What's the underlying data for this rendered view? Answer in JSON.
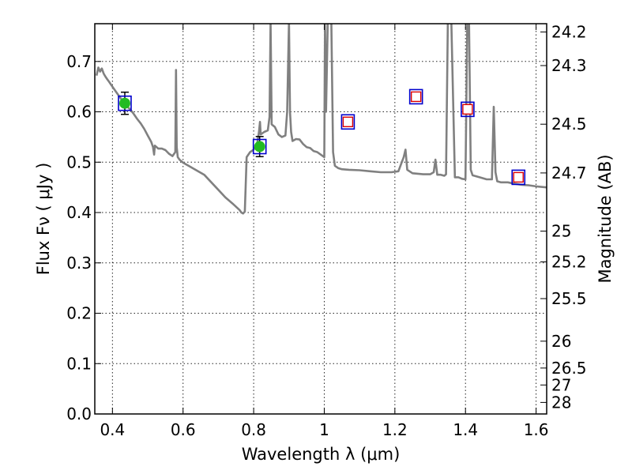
{
  "chart_data": {
    "type": "scatter",
    "xlabel": "Wavelength  λ (μm)",
    "ylabel": "Flux  Fν  ( μJy )",
    "y2label": "Magnitude (AB)",
    "xlim": [
      0.35,
      1.63
    ],
    "ylim": [
      0.0,
      0.775
    ],
    "x_ticks": [
      0.4,
      0.6,
      0.8,
      1.0,
      1.2,
      1.4,
      1.6
    ],
    "x_tick_labels": [
      "0.4",
      "0.6",
      "0.8",
      "1",
      "1.2",
      "1.4",
      "1.6"
    ],
    "y_ticks": [
      0.0,
      0.1,
      0.2,
      0.3,
      0.4,
      0.5,
      0.6,
      0.7
    ],
    "y_tick_labels": [
      "0.0",
      "0.1",
      "0.2",
      "0.3",
      "0.4",
      "0.5",
      "0.6",
      "0.7"
    ],
    "mag_ticks": [
      24.2,
      24.3,
      24.5,
      24.7,
      25,
      25.2,
      25.5,
      26,
      26.5,
      27,
      28
    ],
    "mag_tick_labels": [
      "24.2",
      "24.3",
      "24.5",
      "24.7",
      "25",
      "25.2",
      "25.5",
      "26",
      "26.5",
      "27",
      "28"
    ],
    "grid": true,
    "colors": {
      "sed": "#808080",
      "observed_fill": "#22bb22",
      "observed_box": "#0000cc",
      "model_box_outer": "#0000cc",
      "model_box_inner": "#dd0000",
      "errorbar": "#000000"
    },
    "series": [
      {
        "kind": "line",
        "x": [
          0.355,
          0.36,
          0.365,
          0.37,
          0.375,
          0.38,
          0.385,
          0.39,
          0.395,
          0.4,
          0.41,
          0.42,
          0.43,
          0.44,
          0.45,
          0.46,
          0.47,
          0.48,
          0.49,
          0.5,
          0.51,
          0.515,
          0.518,
          0.52,
          0.53,
          0.54,
          0.55,
          0.56,
          0.57,
          0.578,
          0.58,
          0.582,
          0.585,
          0.59,
          0.6,
          0.62,
          0.64,
          0.66,
          0.68,
          0.7,
          0.72,
          0.74,
          0.76,
          0.765,
          0.77,
          0.775,
          0.78,
          0.79,
          0.8,
          0.81,
          0.815,
          0.818,
          0.82,
          0.83,
          0.84,
          0.845,
          0.848,
          0.851,
          0.86,
          0.87,
          0.88,
          0.89,
          0.895,
          0.9,
          0.903,
          0.906,
          0.91,
          0.92,
          0.93,
          0.94,
          0.95,
          0.96,
          0.97,
          0.98,
          0.99,
          1.0,
          1.002,
          1.005,
          1.01,
          1.015,
          1.02,
          1.025,
          1.03,
          1.04,
          1.05,
          1.07,
          1.1,
          1.13,
          1.16,
          1.19,
          1.21,
          1.225,
          1.23,
          1.235,
          1.25,
          1.28,
          1.3,
          1.31,
          1.315,
          1.32,
          1.33,
          1.34,
          1.345,
          1.35,
          1.355,
          1.36,
          1.37,
          1.38,
          1.39,
          1.4,
          1.405,
          1.41,
          1.415,
          1.42,
          1.44,
          1.46,
          1.475,
          1.48,
          1.485,
          1.49,
          1.5,
          1.52,
          1.54,
          1.56,
          1.58,
          1.6,
          1.63
        ],
        "y": [
          0.672,
          0.688,
          0.68,
          0.686,
          0.676,
          0.67,
          0.665,
          0.66,
          0.655,
          0.65,
          0.64,
          0.63,
          0.62,
          0.612,
          0.605,
          0.596,
          0.586,
          0.577,
          0.566,
          0.553,
          0.54,
          0.53,
          0.515,
          0.533,
          0.527,
          0.527,
          0.524,
          0.517,
          0.512,
          0.52,
          0.683,
          0.53,
          0.51,
          0.505,
          0.499,
          0.491,
          0.483,
          0.475,
          0.46,
          0.445,
          0.43,
          0.418,
          0.405,
          0.4,
          0.398,
          0.402,
          0.51,
          0.52,
          0.525,
          0.537,
          0.56,
          0.58,
          0.555,
          0.56,
          0.563,
          0.59,
          0.78,
          0.575,
          0.57,
          0.555,
          0.55,
          0.553,
          0.6,
          0.78,
          0.6,
          0.56,
          0.542,
          0.546,
          0.545,
          0.536,
          0.53,
          0.528,
          0.522,
          0.52,
          0.515,
          0.51,
          0.78,
          0.6,
          0.78,
          0.78,
          0.78,
          0.52,
          0.493,
          0.488,
          0.486,
          0.485,
          0.484,
          0.482,
          0.48,
          0.48,
          0.482,
          0.51,
          0.525,
          0.485,
          0.478,
          0.476,
          0.476,
          0.48,
          0.505,
          0.475,
          0.475,
          0.473,
          0.476,
          0.78,
          0.78,
          0.78,
          0.47,
          0.47,
          0.467,
          0.466,
          0.78,
          0.78,
          0.485,
          0.474,
          0.47,
          0.466,
          0.466,
          0.61,
          0.48,
          0.462,
          0.46,
          0.46,
          0.457,
          0.455,
          0.454,
          0.452,
          0.45
        ]
      },
      {
        "kind": "observed",
        "x": [
          0.435,
          0.817
        ],
        "y": [
          0.617,
          0.531
        ],
        "yerr": [
          0.022,
          0.02
        ]
      },
      {
        "kind": "model",
        "x": [
          1.067,
          1.26,
          1.406,
          1.55
        ],
        "y": [
          0.58,
          0.63,
          0.605,
          0.47
        ]
      }
    ]
  }
}
